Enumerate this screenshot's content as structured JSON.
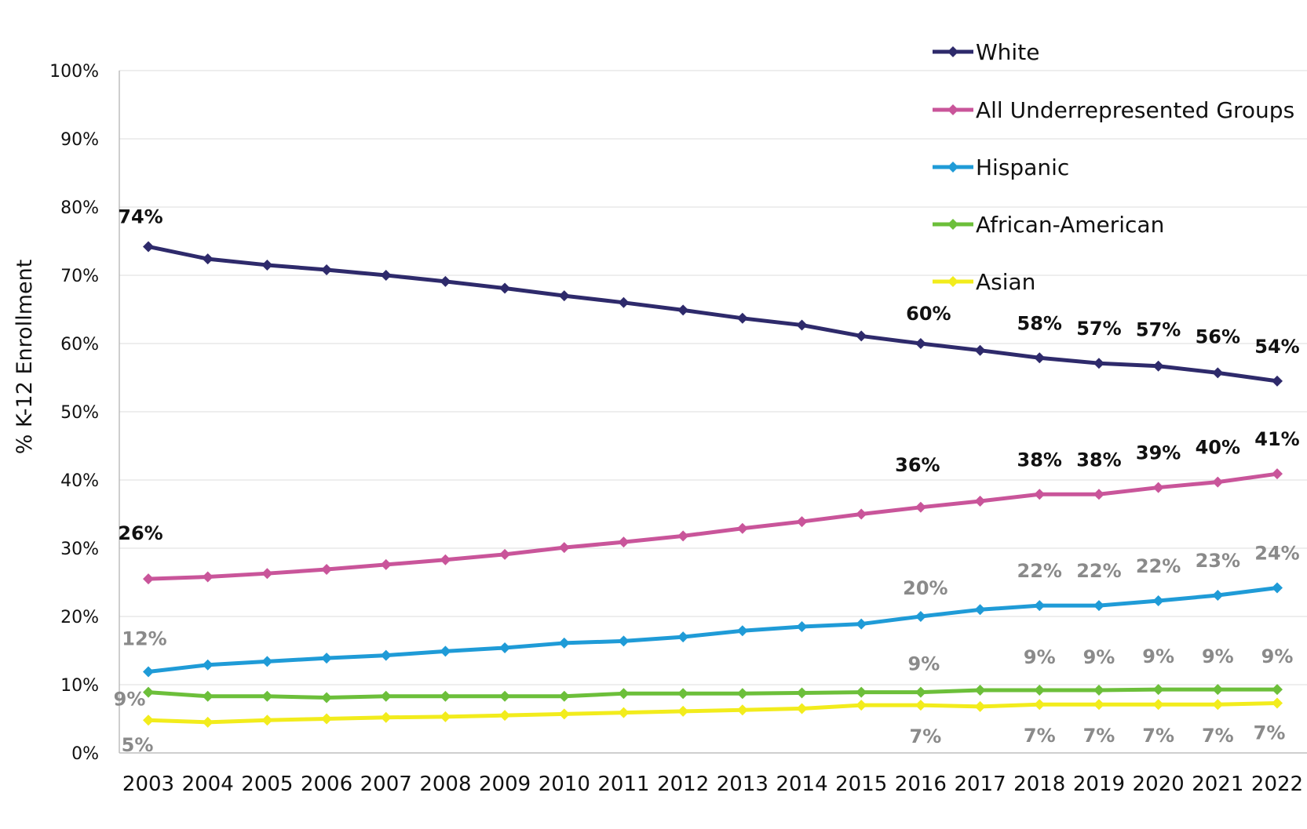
{
  "chart_data": {
    "type": "line",
    "title": "",
    "xlabel": "",
    "ylabel": "% K-12 Enrollment",
    "ylim": [
      0,
      100
    ],
    "yticks": [
      "0%",
      "10%",
      "20%",
      "30%",
      "40%",
      "50%",
      "60%",
      "70%",
      "80%",
      "90%",
      "100%"
    ],
    "grid": "horizontal",
    "legend_position": "top-right",
    "categories": [
      "2003",
      "2004",
      "2005",
      "2006",
      "2007",
      "2008",
      "2009",
      "2010",
      "2011",
      "2012",
      "2013",
      "2014",
      "2015",
      "2016",
      "2017",
      "2018",
      "2019",
      "2020",
      "2021",
      "2022"
    ],
    "series": [
      {
        "name": "White",
        "color": "#2e2a6b",
        "values": [
          74.2,
          72.4,
          71.5,
          70.8,
          70.0,
          69.1,
          68.1,
          67.0,
          66.0,
          64.9,
          63.7,
          62.7,
          61.1,
          60.0,
          59.0,
          57.9,
          57.1,
          56.7,
          55.7,
          54.5
        ],
        "labels": [
          {
            "index": 0,
            "text": "74%",
            "style": "bold"
          },
          {
            "index": 13,
            "text": "60%",
            "style": "bold"
          },
          {
            "index": 15,
            "text": "58%",
            "style": "bold"
          },
          {
            "index": 16,
            "text": "57%",
            "style": "bold"
          },
          {
            "index": 17,
            "text": "57%",
            "style": "bold"
          },
          {
            "index": 18,
            "text": "56%",
            "style": "bold"
          },
          {
            "index": 19,
            "text": "54%",
            "style": "bold"
          }
        ]
      },
      {
        "name": "All Underrepresented Groups",
        "color": "#c9559a",
        "values": [
          25.5,
          25.8,
          26.3,
          26.9,
          27.6,
          28.3,
          29.1,
          30.1,
          30.9,
          31.8,
          32.9,
          33.9,
          35.0,
          36.0,
          36.9,
          37.9,
          37.9,
          38.9,
          39.7,
          40.9
        ],
        "labels": [
          {
            "index": 0,
            "text": "26%",
            "style": "bold"
          },
          {
            "index": 13,
            "text": "36%",
            "style": "bold"
          },
          {
            "index": 15,
            "text": "38%",
            "style": "bold"
          },
          {
            "index": 16,
            "text": "38%",
            "style": "bold"
          },
          {
            "index": 17,
            "text": "39%",
            "style": "bold"
          },
          {
            "index": 18,
            "text": "40%",
            "style": "bold"
          },
          {
            "index": 19,
            "text": "41%",
            "style": "bold"
          }
        ]
      },
      {
        "name": "Hispanic",
        "color": "#1f9bd7",
        "values": [
          11.9,
          12.9,
          13.4,
          13.9,
          14.3,
          14.9,
          15.4,
          16.1,
          16.4,
          17.0,
          17.9,
          18.5,
          18.9,
          20.0,
          21.0,
          21.6,
          21.6,
          22.3,
          23.1,
          24.2
        ],
        "labels": [
          {
            "index": 0,
            "text": "12%",
            "style": "gray"
          },
          {
            "index": 13,
            "text": "20%",
            "style": "gray"
          },
          {
            "index": 15,
            "text": "22%",
            "style": "gray"
          },
          {
            "index": 16,
            "text": "22%",
            "style": "gray"
          },
          {
            "index": 17,
            "text": "22%",
            "style": "gray"
          },
          {
            "index": 18,
            "text": "23%",
            "style": "gray"
          },
          {
            "index": 19,
            "text": "24%",
            "style": "gray"
          }
        ]
      },
      {
        "name": "African-American",
        "color": "#6cbf3a",
        "values": [
          8.9,
          8.3,
          8.3,
          8.1,
          8.3,
          8.3,
          8.3,
          8.3,
          8.7,
          8.7,
          8.7,
          8.8,
          8.9,
          8.9,
          9.2,
          9.2,
          9.2,
          9.3,
          9.3,
          9.3
        ],
        "labels": [
          {
            "index": 0,
            "text": "9%",
            "style": "gray"
          },
          {
            "index": 13,
            "text": "9%",
            "style": "gray"
          },
          {
            "index": 15,
            "text": "9%",
            "style": "gray"
          },
          {
            "index": 16,
            "text": "9%",
            "style": "gray"
          },
          {
            "index": 17,
            "text": "9%",
            "style": "gray"
          },
          {
            "index": 18,
            "text": "9%",
            "style": "gray"
          },
          {
            "index": 19,
            "text": "9%",
            "style": "gray"
          }
        ]
      },
      {
        "name": "Asian",
        "color": "#f2ec1c",
        "values": [
          4.8,
          4.5,
          4.8,
          5.0,
          5.2,
          5.3,
          5.5,
          5.7,
          5.9,
          6.1,
          6.3,
          6.5,
          7.0,
          7.0,
          6.8,
          7.1,
          7.1,
          7.1,
          7.1,
          7.3
        ],
        "labels": [
          {
            "index": 0,
            "text": "5%",
            "style": "gray"
          },
          {
            "index": 13,
            "text": "7%",
            "style": "gray"
          },
          {
            "index": 15,
            "text": "7%",
            "style": "gray"
          },
          {
            "index": 16,
            "text": "7%",
            "style": "gray"
          },
          {
            "index": 17,
            "text": "7%",
            "style": "gray"
          },
          {
            "index": 18,
            "text": "7%",
            "style": "gray"
          },
          {
            "index": 19,
            "text": "7%",
            "style": "gray"
          }
        ]
      }
    ]
  }
}
